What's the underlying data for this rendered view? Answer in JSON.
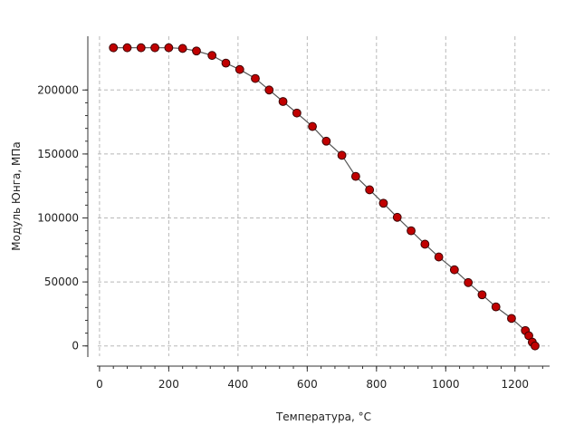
{
  "chart_data": {
    "type": "scatter",
    "title": "",
    "xlabel": "Температура, °C",
    "ylabel": "Модуль Юнга, МПа",
    "xlim": [
      -5,
      1300
    ],
    "ylim": [
      -8000,
      242000
    ],
    "x_ticks": [
      0,
      200,
      400,
      600,
      800,
      1000,
      1200
    ],
    "y_ticks": [
      0,
      50000,
      100000,
      150000,
      200000
    ],
    "x_tick_labels": [
      "0",
      "200",
      "400",
      "600",
      "800",
      "1000",
      "1200"
    ],
    "y_tick_labels": [
      "0",
      "50000",
      "100000",
      "150000",
      "200000"
    ],
    "grid": true,
    "legend": "none",
    "colors": {
      "marker_fill": "#c00000",
      "marker_edge": "#3a0000",
      "line": "#555555",
      "grid": "#b8b8b8",
      "axis": "#333333"
    },
    "series": [
      {
        "x": [
          40,
          80,
          120,
          160,
          200,
          240,
          280,
          325,
          365,
          405,
          450,
          490,
          530,
          570,
          615,
          655,
          700,
          740,
          780,
          820,
          860,
          900,
          940,
          980,
          1025,
          1065,
          1105,
          1145,
          1190,
          1230,
          1240,
          1250,
          1258
        ],
        "y": [
          233000,
          233000,
          233000,
          233000,
          233000,
          232500,
          230500,
          227000,
          221000,
          216000,
          209000,
          200000,
          191000,
          182000,
          171500,
          160000,
          149000,
          132500,
          122000,
          111500,
          100500,
          90000,
          79500,
          69500,
          59500,
          49500,
          40000,
          30500,
          21500,
          12000,
          8000,
          3000,
          0
        ]
      }
    ]
  }
}
